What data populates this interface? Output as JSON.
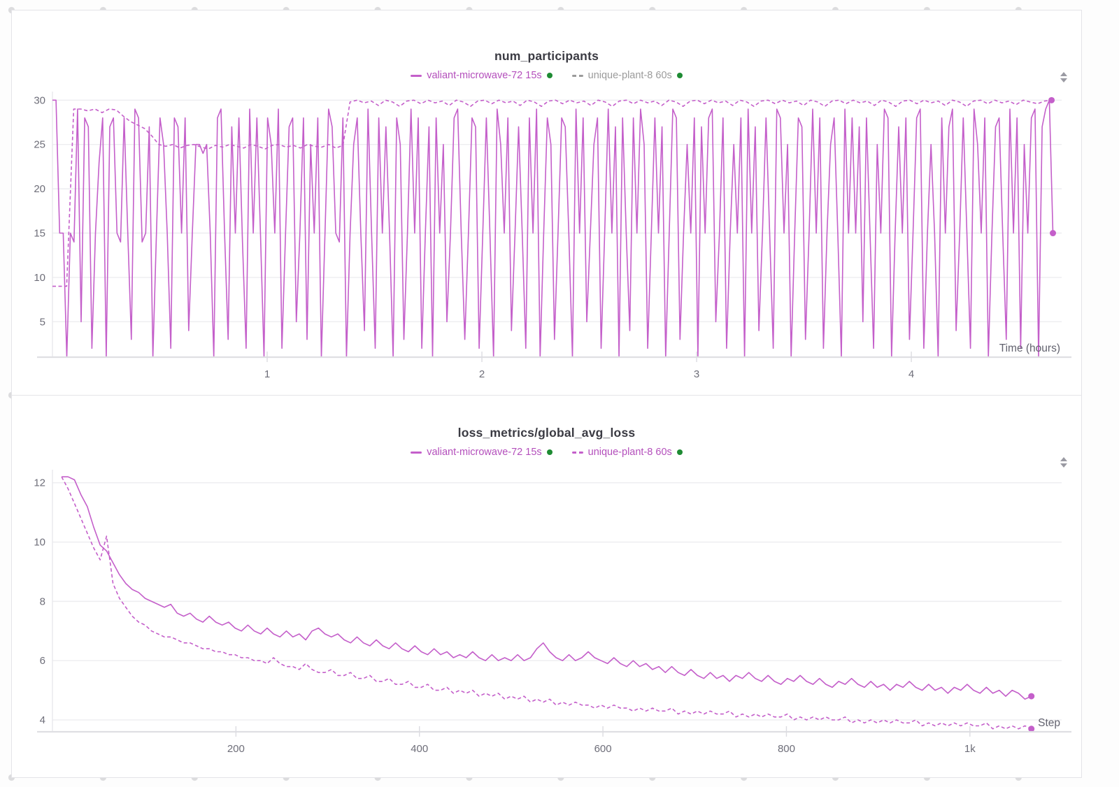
{
  "colors": {
    "run_magenta": "#c45fca",
    "legend_magenta_text": "#b44fbc",
    "legend_gray_text": "#9b9b9b",
    "status_green": "#1e8b33",
    "grid_line": "#ededf0",
    "axis_line": "#dfdfe3",
    "tick_text": "#6e6e79"
  },
  "controls": {
    "expand_icon": "up-down-arrows"
  },
  "chart_data": [
    {
      "type": "line",
      "title": "num_participants",
      "xlabel": "Time (hours)",
      "ylabel": "",
      "xlim": [
        0,
        4.7
      ],
      "ylim": [
        1,
        30.5
      ],
      "x_ticks": [
        1,
        2,
        3,
        4
      ],
      "x_tick_labels": [
        "1",
        "2",
        "3",
        "4"
      ],
      "y_ticks": [
        5,
        10,
        15,
        20,
        25,
        30
      ],
      "y_tick_labels": [
        "5",
        "10",
        "15",
        "20",
        "25",
        "30"
      ],
      "grid": "horizontal",
      "legend_position": "top-center",
      "end_marker": true,
      "series": [
        {
          "name": "valiant-microwave-72 15s",
          "style": "solid",
          "color": "#c45fca",
          "legend_text_color": "#b44fbc",
          "legend_marker_color": "#c45fca",
          "status_dot_color": "#1e8b33",
          "x_start": 0,
          "x_step": 0.0167,
          "values": [
            30,
            30,
            15,
            15,
            1,
            15,
            14,
            29,
            5,
            28,
            27,
            2,
            15,
            23,
            28,
            1,
            27,
            28,
            15,
            14,
            28,
            15,
            3,
            29,
            28,
            14,
            15,
            27,
            1,
            15,
            28,
            25,
            15,
            2,
            28,
            27,
            15,
            28,
            4,
            15,
            25,
            25,
            24,
            25,
            15,
            1,
            28,
            29,
            15,
            3,
            27,
            15,
            28,
            14,
            2,
            29,
            15,
            28,
            15,
            1,
            28,
            25,
            15,
            29,
            2,
            15,
            27,
            28,
            5,
            15,
            28,
            3,
            25,
            15,
            28,
            1,
            15,
            29,
            27,
            15,
            14,
            28,
            1,
            15,
            25,
            28,
            15,
            4,
            29,
            15,
            2,
            28,
            15,
            27,
            15,
            1,
            28,
            25,
            3,
            15,
            29,
            15,
            28,
            2,
            15,
            27,
            1,
            28,
            15,
            25,
            5,
            15,
            28,
            29,
            15,
            3,
            15,
            28,
            27,
            2,
            15,
            28,
            15,
            1,
            29,
            25,
            15,
            28,
            4,
            15,
            27,
            15,
            2,
            28,
            15,
            29,
            1,
            15,
            28,
            25,
            3,
            15,
            28,
            27,
            15,
            1,
            29,
            15,
            28,
            5,
            15,
            25,
            28,
            2,
            15,
            29,
            15,
            27,
            1,
            28,
            15,
            4,
            28,
            15,
            29,
            25,
            2,
            15,
            28,
            15,
            27,
            1,
            15,
            29,
            28,
            3,
            15,
            25,
            15,
            28,
            1,
            27,
            15,
            28,
            29,
            5,
            15,
            28,
            2,
            15,
            25,
            15,
            28,
            1,
            29,
            15,
            27,
            4,
            15,
            28,
            15,
            2,
            29,
            28,
            15,
            25,
            1,
            15,
            28,
            27,
            3,
            15,
            29,
            15,
            28,
            2,
            15,
            25,
            28,
            15,
            1,
            29,
            15,
            28,
            15,
            27,
            5,
            28,
            15,
            2,
            25,
            15,
            29,
            28,
            1,
            15,
            27,
            15,
            28,
            3,
            15,
            28,
            29,
            2,
            15,
            25,
            15,
            1,
            28,
            15,
            27,
            29,
            4,
            15,
            28,
            15,
            2,
            29,
            25,
            15,
            28,
            1,
            15,
            27,
            28,
            15,
            3,
            29,
            15,
            28,
            2,
            25,
            15,
            28,
            29,
            1,
            27,
            29,
            30,
            15
          ]
        },
        {
          "name": "unique-plant-8 60s",
          "style": "dashed",
          "color": "#c45fca",
          "legend_text_color": "#9b9b9b",
          "legend_marker_color": "#9b9b9b",
          "status_dot_color": "#1e8b33",
          "x_start": 0,
          "x_step": 0.033,
          "values": [
            9,
            9,
            9,
            29,
            29,
            28.8,
            29,
            28.6,
            29,
            28.9,
            28.2,
            27.6,
            27.2,
            26.8,
            26,
            25,
            24.8,
            25,
            24.6,
            24.9,
            25,
            24.7,
            24.5,
            24.9,
            24.7,
            25,
            24.8,
            24.6,
            25,
            24.8,
            24.5,
            24.9,
            25,
            24.7,
            24.9,
            24.6,
            25,
            24.8,
            24.7,
            25,
            24.6,
            24.9,
            29.8,
            30,
            29.7,
            29.9,
            29.4,
            30,
            29.8,
            29.3,
            29.9,
            30,
            29.6,
            30,
            29.7,
            29.9,
            29.4,
            30,
            29.8,
            29.3,
            29.9,
            30,
            29.6,
            30,
            29.7,
            29.9,
            29.4,
            30,
            29.8,
            29.3,
            29.9,
            30,
            29.6,
            30,
            29.7,
            29.9,
            29.4,
            30,
            29.8,
            29.3,
            29.9,
            30,
            29.6,
            30,
            29.7,
            29.9,
            29.4,
            30,
            29.8,
            29.3,
            29.9,
            30,
            29.6,
            30,
            29.7,
            29.9,
            29.4,
            30,
            29.8,
            29.3,
            29.9,
            30,
            29.6,
            30,
            29.7,
            29.9,
            29.4,
            30,
            29.8,
            29.3,
            29.9,
            30,
            29.6,
            30,
            29.7,
            29.9,
            29.4,
            30,
            29.8,
            29.3,
            29.9,
            30,
            29.6,
            30,
            29.7,
            29.9,
            29.4,
            30,
            29.8,
            29.3,
            29.9,
            30,
            29.6,
            30,
            29.7,
            29.9,
            29.5,
            30,
            29.8,
            29.6,
            29.9,
            30
          ]
        }
      ]
    },
    {
      "type": "line",
      "title": "loss_metrics/global_avg_loss",
      "xlabel": "Step",
      "ylabel": "",
      "xlim": [
        0,
        1100
      ],
      "ylim": [
        3.6,
        12.3
      ],
      "x_ticks": [
        200,
        400,
        600,
        800,
        1000
      ],
      "x_tick_labels": [
        "200",
        "400",
        "600",
        "800",
        "1k"
      ],
      "y_ticks": [
        4,
        6,
        8,
        10,
        12
      ],
      "y_tick_labels": [
        "4",
        "6",
        "8",
        "10",
        "12"
      ],
      "grid": "horizontal",
      "legend_position": "top-center",
      "end_marker": true,
      "series": [
        {
          "name": "valiant-microwave-72 15s",
          "style": "solid",
          "color": "#c45fca",
          "legend_text_color": "#b44fbc",
          "legend_marker_color": "#c45fca",
          "status_dot_color": "#1e8b33",
          "x_start": 10,
          "x_step": 7,
          "values": [
            12.2,
            12.2,
            12.1,
            11.6,
            11.2,
            10.5,
            9.9,
            9.7,
            9.3,
            8.9,
            8.6,
            8.4,
            8.3,
            8.1,
            8.0,
            7.9,
            7.8,
            7.9,
            7.6,
            7.5,
            7.6,
            7.4,
            7.3,
            7.5,
            7.3,
            7.2,
            7.3,
            7.1,
            7.0,
            7.2,
            7.0,
            6.9,
            7.1,
            6.9,
            6.8,
            7.0,
            6.8,
            6.9,
            6.7,
            7.0,
            7.1,
            6.9,
            6.8,
            6.9,
            6.7,
            6.6,
            6.8,
            6.6,
            6.5,
            6.7,
            6.5,
            6.4,
            6.6,
            6.4,
            6.3,
            6.5,
            6.3,
            6.2,
            6.4,
            6.2,
            6.3,
            6.1,
            6.2,
            6.1,
            6.3,
            6.1,
            6.0,
            6.2,
            6.0,
            6.1,
            6.0,
            6.2,
            6.0,
            6.1,
            6.4,
            6.6,
            6.3,
            6.1,
            6.0,
            6.2,
            6.0,
            6.1,
            6.3,
            6.1,
            6.0,
            5.9,
            6.1,
            5.9,
            5.8,
            6.0,
            5.8,
            5.9,
            5.7,
            5.8,
            5.6,
            5.8,
            5.6,
            5.5,
            5.7,
            5.5,
            5.4,
            5.6,
            5.4,
            5.5,
            5.3,
            5.5,
            5.4,
            5.6,
            5.4,
            5.3,
            5.5,
            5.3,
            5.2,
            5.4,
            5.3,
            5.5,
            5.3,
            5.2,
            5.4,
            5.2,
            5.1,
            5.3,
            5.2,
            5.4,
            5.2,
            5.1,
            5.3,
            5.1,
            5.2,
            5.0,
            5.2,
            5.1,
            5.3,
            5.1,
            5.0,
            5.2,
            5.0,
            5.1,
            4.9,
            5.1,
            5.0,
            5.2,
            5.0,
            4.9,
            5.1,
            4.9,
            5.0,
            4.8,
            5.0,
            4.9,
            4.7,
            4.8
          ]
        },
        {
          "name": "unique-plant-8 60s",
          "style": "dashed",
          "color": "#c45fca",
          "legend_text_color": "#b44fbc",
          "legend_marker_color": "#c45fca",
          "status_dot_color": "#1e8b33",
          "x_start": 10,
          "x_step": 7,
          "values": [
            12.2,
            11.8,
            11.3,
            10.8,
            10.3,
            9.8,
            9.4,
            10.2,
            8.6,
            8.1,
            7.8,
            7.5,
            7.3,
            7.2,
            7.0,
            6.9,
            6.8,
            6.8,
            6.7,
            6.6,
            6.6,
            6.5,
            6.4,
            6.4,
            6.3,
            6.3,
            6.2,
            6.2,
            6.1,
            6.1,
            6.0,
            6.0,
            5.9,
            6.1,
            5.9,
            5.8,
            5.8,
            5.7,
            5.9,
            5.7,
            5.6,
            5.6,
            5.7,
            5.5,
            5.5,
            5.6,
            5.4,
            5.4,
            5.5,
            5.3,
            5.3,
            5.4,
            5.2,
            5.2,
            5.3,
            5.1,
            5.1,
            5.2,
            5.0,
            5.0,
            5.1,
            4.9,
            5.0,
            4.9,
            5.0,
            4.8,
            4.9,
            4.8,
            4.9,
            4.7,
            4.8,
            4.7,
            4.8,
            4.6,
            4.7,
            4.6,
            4.7,
            4.5,
            4.6,
            4.5,
            4.6,
            4.5,
            4.5,
            4.4,
            4.5,
            4.4,
            4.5,
            4.4,
            4.4,
            4.3,
            4.4,
            4.3,
            4.4,
            4.3,
            4.3,
            4.4,
            4.2,
            4.3,
            4.2,
            4.3,
            4.2,
            4.3,
            4.2,
            4.2,
            4.3,
            4.1,
            4.2,
            4.1,
            4.2,
            4.1,
            4.2,
            4.1,
            4.1,
            4.2,
            4.0,
            4.1,
            4.0,
            4.1,
            4.0,
            4.1,
            4.0,
            4.0,
            4.1,
            3.9,
            4.0,
            3.9,
            4.0,
            3.9,
            4.0,
            3.9,
            4.0,
            3.9,
            3.9,
            4.0,
            3.8,
            3.9,
            3.8,
            3.9,
            3.8,
            3.9,
            3.8,
            3.9,
            3.8,
            3.8,
            3.9,
            3.7,
            3.8,
            3.7,
            3.8,
            3.7,
            3.8,
            3.7
          ]
        }
      ]
    }
  ]
}
